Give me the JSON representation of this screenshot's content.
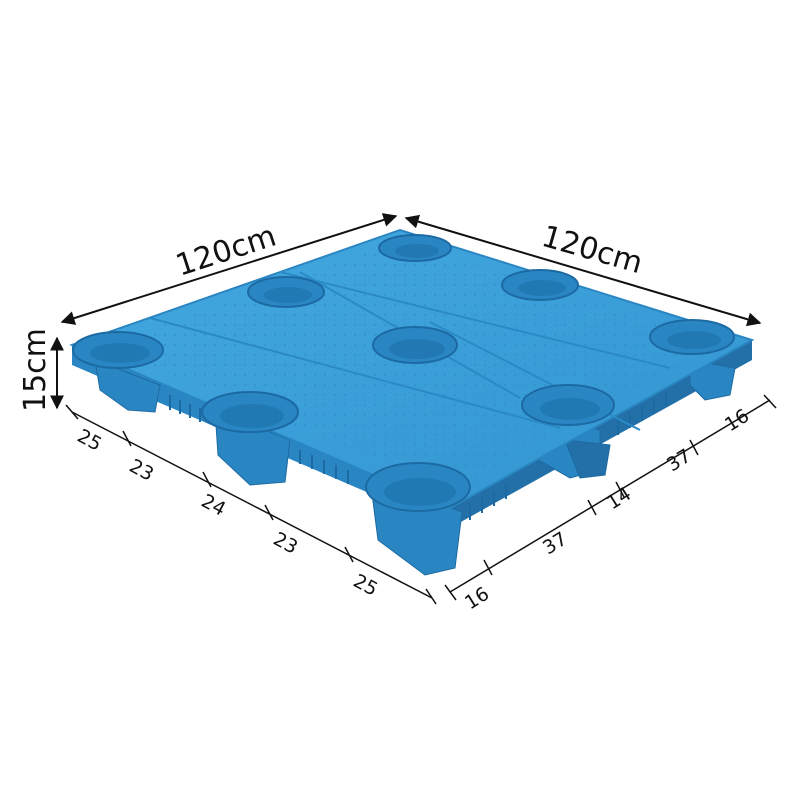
{
  "dimensions": {
    "length_label": "120cm",
    "width_label": "120cm",
    "height_label": "15cm",
    "front_segments": [
      "25",
      "23",
      "24",
      "23",
      "25"
    ],
    "side_segments": [
      "16",
      "37",
      "14",
      "37",
      "16"
    ]
  },
  "colors": {
    "pallet_top": "#3a9fd8",
    "pallet_side": "#2a86c2",
    "pallet_dark": "#1c6aa3",
    "lines": "#111111",
    "background": "#ffffff"
  }
}
